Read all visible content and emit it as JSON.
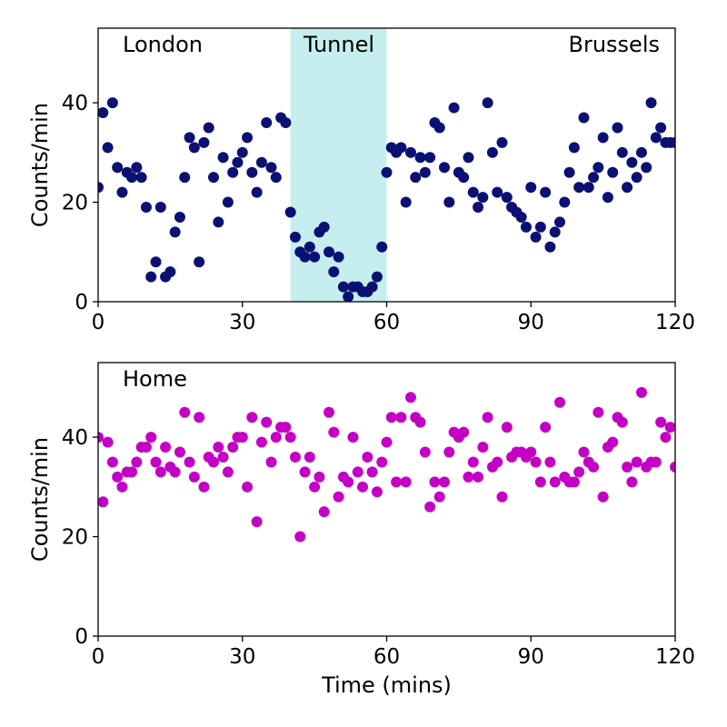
{
  "chart_data": [
    {
      "type": "scatter",
      "title": "",
      "xlabel": "",
      "ylabel": "Counts/min",
      "xlim": [
        0,
        120
      ],
      "ylim": [
        0,
        55
      ],
      "xticks": [
        "0",
        "30",
        "60",
        "90",
        "120"
      ],
      "yticks": [
        "0",
        "20",
        "40"
      ],
      "grid": false,
      "color": "#0a1172",
      "annotations": [
        "London",
        "Tunnel",
        "Brussels"
      ],
      "highlight": {
        "label": "Tunnel",
        "x_start": 40,
        "x_end": 60,
        "color": "#c6eeee"
      },
      "x": [
        0,
        1,
        2,
        3,
        4,
        5,
        6,
        7,
        8,
        9,
        10,
        11,
        12,
        13,
        14,
        15,
        16,
        17,
        18,
        19,
        20,
        21,
        22,
        23,
        24,
        25,
        26,
        27,
        28,
        29,
        30,
        31,
        32,
        33,
        34,
        35,
        36,
        37,
        38,
        39,
        40,
        41,
        42,
        43,
        44,
        45,
        46,
        47,
        48,
        49,
        50,
        51,
        52,
        53,
        54,
        55,
        56,
        57,
        58,
        59,
        60,
        61,
        62,
        63,
        64,
        65,
        66,
        67,
        68,
        69,
        70,
        71,
        72,
        73,
        74,
        75,
        76,
        77,
        78,
        79,
        80,
        81,
        82,
        83,
        84,
        85,
        86,
        87,
        88,
        89,
        90,
        91,
        92,
        93,
        94,
        95,
        96,
        97,
        98,
        99,
        100,
        101,
        102,
        103,
        104,
        105,
        106,
        107,
        108,
        109,
        110,
        111,
        112,
        113,
        114,
        115,
        116,
        117,
        118,
        119,
        120
      ],
      "y": [
        23,
        38,
        31,
        40,
        27,
        22,
        26,
        25,
        27,
        25,
        19,
        5,
        8,
        19,
        5,
        6,
        14,
        17,
        25,
        33,
        31,
        8,
        32,
        35,
        25,
        16,
        29,
        20,
        26,
        28,
        30,
        33,
        26,
        22,
        28,
        36,
        27,
        25,
        37,
        36,
        18,
        13,
        10,
        9,
        11,
        9,
        14,
        15,
        10,
        6,
        9,
        3,
        1,
        3,
        3,
        2,
        2,
        3,
        5,
        11,
        26,
        31,
        30,
        31,
        20,
        30,
        25,
        29,
        26,
        29,
        36,
        35,
        27,
        20,
        39,
        26,
        25,
        29,
        22,
        19,
        21,
        40,
        30,
        22,
        32,
        21,
        19,
        18,
        17,
        15,
        23,
        13,
        15,
        22,
        11,
        14,
        16,
        20,
        26,
        31,
        23,
        37,
        23,
        25,
        27,
        33,
        21,
        26,
        35,
        30,
        23,
        28,
        25,
        30,
        27,
        40,
        33,
        35,
        32,
        32,
        32
      ]
    },
    {
      "type": "scatter",
      "title": "",
      "xlabel": "Time (mins)",
      "ylabel": "Counts/min",
      "xlim": [
        0,
        120
      ],
      "ylim": [
        0,
        55
      ],
      "xticks": [
        "0",
        "30",
        "60",
        "90",
        "120"
      ],
      "yticks": [
        "0",
        "20",
        "40"
      ],
      "grid": false,
      "color": "#c400c4",
      "annotations": [
        "Home"
      ],
      "x": [
        0,
        1,
        2,
        3,
        4,
        5,
        6,
        7,
        8,
        9,
        10,
        11,
        12,
        13,
        14,
        15,
        16,
        17,
        18,
        19,
        20,
        21,
        22,
        23,
        24,
        25,
        26,
        27,
        28,
        29,
        30,
        31,
        32,
        33,
        34,
        35,
        36,
        37,
        38,
        39,
        40,
        41,
        42,
        43,
        44,
        45,
        46,
        47,
        48,
        49,
        50,
        51,
        52,
        53,
        54,
        55,
        56,
        57,
        58,
        59,
        60,
        61,
        62,
        63,
        64,
        65,
        66,
        67,
        68,
        69,
        70,
        71,
        72,
        73,
        74,
        75,
        76,
        77,
        78,
        79,
        80,
        81,
        82,
        83,
        84,
        85,
        86,
        87,
        88,
        89,
        90,
        91,
        92,
        93,
        94,
        95,
        96,
        97,
        98,
        99,
        100,
        101,
        102,
        103,
        104,
        105,
        106,
        107,
        108,
        109,
        110,
        111,
        112,
        113,
        114,
        115,
        116,
        117,
        118,
        119,
        120
      ],
      "y": [
        40,
        27,
        39,
        35,
        32,
        30,
        33,
        33,
        35,
        38,
        38,
        40,
        35,
        33,
        38,
        34,
        33,
        37,
        45,
        35,
        32,
        44,
        30,
        36,
        35,
        38,
        36,
        33,
        38,
        40,
        40,
        30,
        44,
        23,
        39,
        43,
        35,
        40,
        42,
        42,
        40,
        36,
        20,
        33,
        36,
        30,
        32,
        25,
        45,
        41,
        28,
        32,
        31,
        40,
        33,
        30,
        36,
        33,
        29,
        35,
        39,
        44,
        31,
        44,
        31,
        48,
        44,
        43,
        37,
        26,
        31,
        28,
        31,
        37,
        41,
        40,
        41,
        32,
        35,
        32,
        38,
        44,
        34,
        35,
        28,
        42,
        36,
        37,
        37,
        36,
        37,
        35,
        31,
        42,
        35,
        31,
        47,
        32,
        31,
        31,
        33,
        37,
        35,
        34,
        45,
        28,
        38,
        39,
        44,
        43,
        34,
        31,
        35,
        49,
        34,
        35,
        35,
        43,
        40,
        42,
        34
      ]
    }
  ]
}
